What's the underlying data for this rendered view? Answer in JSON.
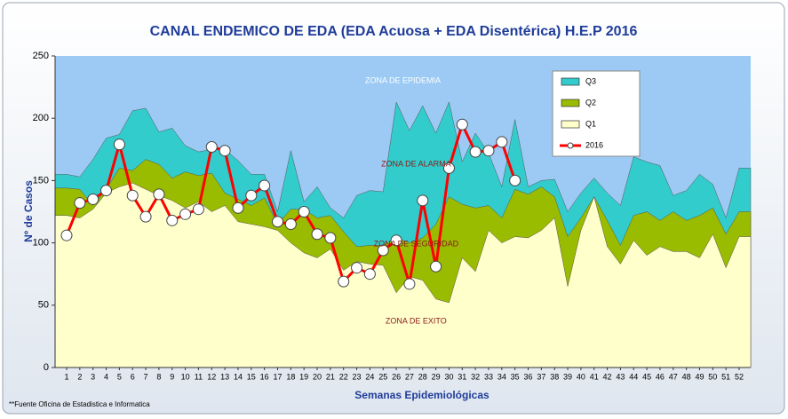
{
  "chart_data": {
    "type": "line",
    "title": "CANAL  ENDEMICO DE EDA (EDA Acuosa + EDA Disentérica) H.E.P 2016",
    "x_label": "Semanas Epidemiológicas",
    "y_label": "Nº de Casos",
    "footnote": "**Fuente Oficina de Estadistica e Informatica",
    "plot_color": "#9ccaf4",
    "annotations": [
      {
        "text": "ZONA DE EPIDEMIA",
        "x": 26.5,
        "y": 230,
        "color": "#ffffff"
      },
      {
        "text": "ZONA DE ALARMA",
        "x": 27.5,
        "y": 163,
        "color": "#8b1a1a"
      },
      {
        "text": "ZONA DE SEGURIDAD",
        "x": 27.5,
        "y": 99,
        "color": "#8b1a1a"
      },
      {
        "text": "ZONA DE EXITO",
        "x": 27.5,
        "y": 37,
        "color": "#8b1a1a"
      }
    ],
    "x": [
      1,
      2,
      3,
      4,
      5,
      6,
      7,
      8,
      9,
      10,
      11,
      12,
      13,
      14,
      15,
      16,
      17,
      18,
      19,
      20,
      21,
      22,
      23,
      24,
      25,
      26,
      27,
      28,
      29,
      30,
      31,
      32,
      33,
      34,
      35,
      36,
      37,
      38,
      39,
      40,
      41,
      42,
      43,
      44,
      45,
      46,
      47,
      48,
      49,
      50,
      51,
      52
    ],
    "xlim": [
      1,
      52
    ],
    "ylim": [
      0,
      250
    ],
    "yticks": [
      0,
      50,
      100,
      150,
      200,
      250
    ],
    "series": [
      {
        "name": "Q3",
        "kind": "area",
        "color": "#33cccc",
        "values": [
          155,
          153,
          167,
          184,
          187,
          206,
          208,
          189,
          192,
          178,
          173,
          175,
          175,
          166,
          155,
          155,
          125,
          174,
          133,
          145,
          128,
          120,
          138,
          142,
          141,
          213,
          190,
          210,
          188,
          213,
          165,
          188,
          172,
          145,
          199,
          145,
          150,
          151,
          125,
          140,
          152,
          140,
          130,
          169,
          165,
          162,
          138,
          142,
          155,
          147,
          120,
          160
        ]
      },
      {
        "name": "Q2",
        "kind": "area",
        "color": "#99bb00",
        "values": [
          144,
          143,
          130,
          143,
          160,
          158,
          167,
          163,
          152,
          157,
          154,
          156,
          140,
          135,
          130,
          136,
          115,
          127,
          127,
          120,
          122,
          109,
          97,
          98,
          98,
          104,
          100,
          104,
          115,
          137,
          131,
          128,
          130,
          120,
          143,
          139,
          145,
          137,
          105,
          120,
          137,
          118,
          98,
          122,
          125,
          118,
          125,
          118,
          122,
          128,
          107,
          125
        ]
      },
      {
        "name": "Q1",
        "kind": "area",
        "color": "#ffffcc",
        "values": [
          122,
          120,
          127,
          140,
          145,
          148,
          143,
          138,
          134,
          128,
          133,
          125,
          130,
          117,
          115,
          113,
          110,
          100,
          92,
          88,
          95,
          78,
          85,
          83,
          82,
          60,
          73,
          70,
          55,
          52,
          88,
          77,
          110,
          100,
          105,
          104,
          110,
          120,
          65,
          110,
          137,
          97,
          83,
          102,
          90,
          97,
          93,
          93,
          88,
          107,
          80,
          105
        ]
      },
      {
        "name": "2016",
        "kind": "line",
        "color": "#ff0000",
        "values": [
          106,
          132,
          135,
          142,
          179,
          138,
          121,
          139,
          118,
          123,
          127,
          177,
          174,
          128,
          138,
          146,
          117,
          115,
          125,
          107,
          104,
          69,
          80,
          75,
          94,
          102,
          67,
          134,
          81,
          160,
          195,
          173,
          174,
          181,
          150,
          null,
          null,
          null,
          null,
          null,
          null,
          null,
          null,
          null,
          null,
          null,
          null,
          null,
          null,
          null,
          null,
          null
        ]
      }
    ]
  }
}
